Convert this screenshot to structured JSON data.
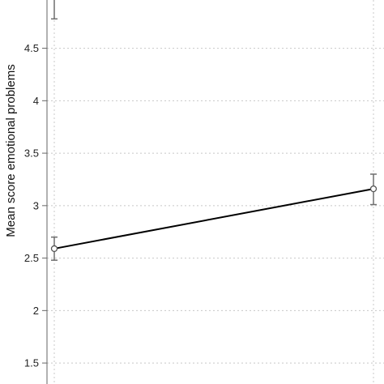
{
  "chart_data": {
    "type": "line",
    "title": "",
    "xlabel": "",
    "ylabel": "Mean score emotional problems",
    "ylim": [
      1.3,
      4.96
    ],
    "yticks": [
      1.5,
      2,
      2.5,
      3,
      3.5,
      4,
      4.5
    ],
    "ytick_labels": [
      "1.5",
      "2",
      "2.5",
      "3",
      "3.5",
      "4",
      "4.5"
    ],
    "grid": true,
    "x": [
      0,
      1
    ],
    "series": [
      {
        "name": "",
        "values": [
          2.59,
          3.16
        ],
        "ci_low": [
          2.48,
          3.01
        ],
        "ci_high": [
          2.7,
          3.3
        ]
      }
    ],
    "partial_error_bar": {
      "x": 0,
      "low": 4.78
    },
    "colors": {
      "line": "#000000",
      "errorbar": "#6e6e6e",
      "grid": "#c8c8c8",
      "axis": "#666666"
    }
  }
}
